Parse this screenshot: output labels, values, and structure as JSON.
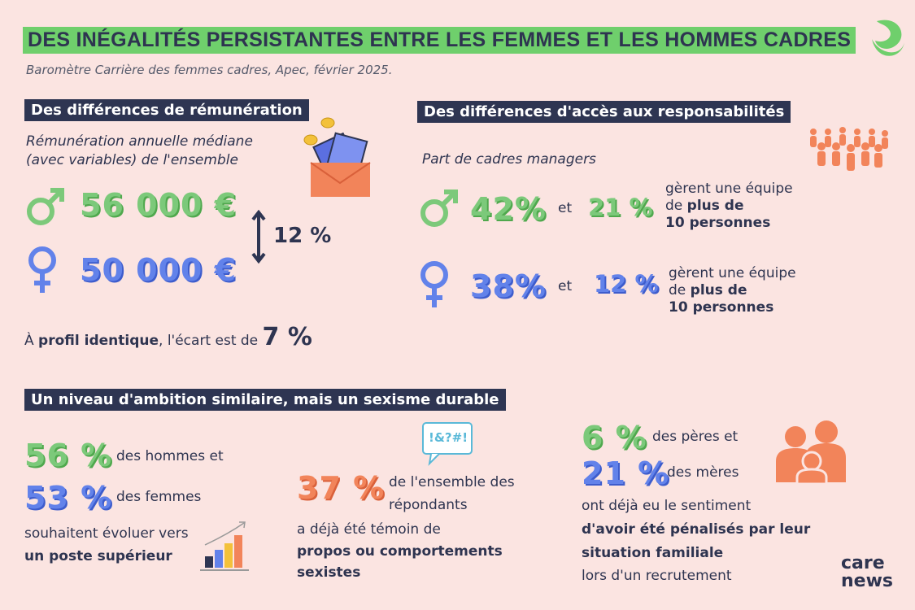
{
  "header": {
    "title": "DES INÉGALITÉS PERSISTANTES ENTRE LES FEMMES ET LES HOMMES CADRES",
    "source": "Baromètre Carrière des femmes cadres, Apec, février 2025."
  },
  "pay": {
    "heading": "Des différences de rémunération",
    "subtitle_lines": [
      "Rémunération annuelle médiane",
      "(avec variables) de l'ensemble"
    ],
    "men_value": "56 000 €",
    "women_value": "50 000 €",
    "gap": "12 %",
    "note": {
      "prefix": "À",
      "bold": "profil identique",
      "middle": ", l'écart est de",
      "value": "7 %"
    }
  },
  "management": {
    "heading": "Des différences d'accès aux responsabilités",
    "subtitle": "Part de cadres managers",
    "rows": [
      {
        "share": "42%",
        "and": "et",
        "large_team": "21 %",
        "line1": "gèrent une équipe",
        "line2_prefix": "de",
        "line2_bold": "plus de",
        "line3_bold": "10 personnes"
      },
      {
        "share": "38%",
        "and": "et",
        "large_team": "12 %",
        "line1": "gèrent une équipe",
        "line2_prefix": "de",
        "line2_bold": "plus de",
        "line3_bold": "10 personnes"
      }
    ]
  },
  "ambition": {
    "heading": "Un niveau d'ambition similaire, mais un sexisme durable",
    "wish": {
      "men_value": "56 %",
      "men_text": "des hommes et",
      "women_value": "53 %",
      "women_text": "des femmes",
      "line1": "souhaitent évoluer vers",
      "line2_bold": "un poste supérieur"
    },
    "sexism": {
      "bubble": "!&?#!",
      "value": "37 %",
      "text_lines": [
        "de l'ensemble des",
        "répondants"
      ],
      "line1": "a déjà été témoin de",
      "bold_lines": [
        "propos ou comportements",
        "sexistes"
      ]
    },
    "family": {
      "fathers_value": "6 %",
      "fathers_text": "des pères et",
      "mothers_value": "21 %",
      "mothers_text": "des mères",
      "line1": "ont déjà eu le sentiment",
      "bold_lines": [
        "d'avoir été pénalisés par leur",
        "situation familiale"
      ],
      "line_last": "lors d'un recrutement"
    }
  },
  "logo": {
    "top": "care",
    "bottom": "news"
  }
}
